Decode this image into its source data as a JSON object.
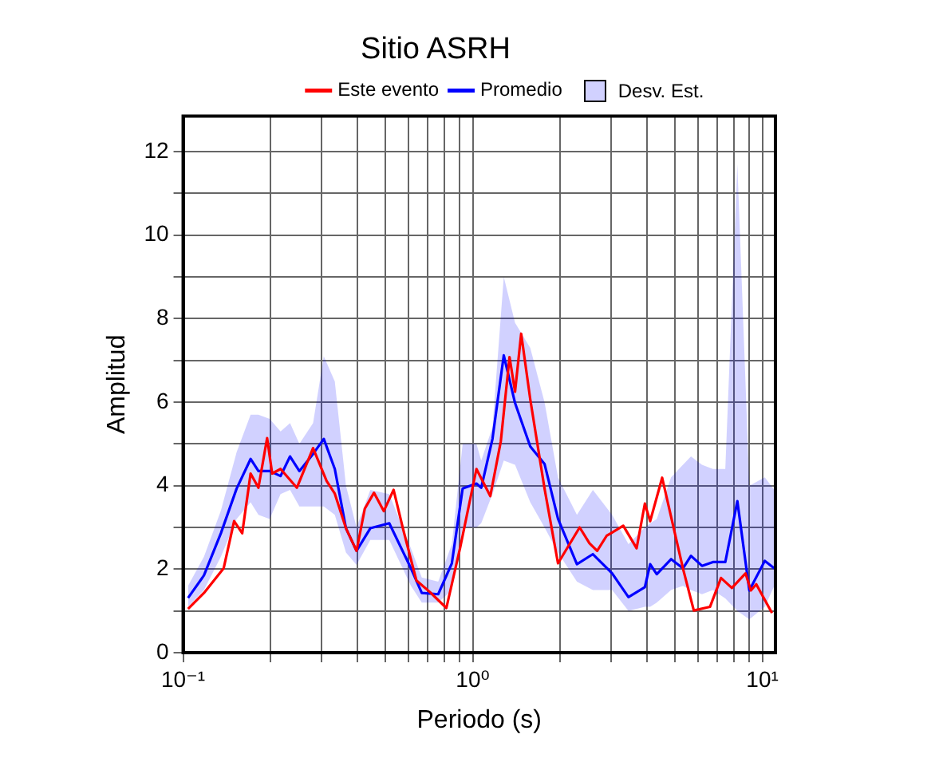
{
  "chart_data": {
    "type": "line",
    "title": "Sitio ASRH",
    "xlabel": "Periodo (s)",
    "ylabel": "Amplitud",
    "log": "x",
    "grid": true,
    "legend": "top",
    "xlim": [
      0.1,
      11.1
    ],
    "xticks": [
      {
        "value": 0.1,
        "label": "10⁻¹"
      },
      {
        "value": 0.2,
        "label": null
      },
      {
        "value": 0.3,
        "label": null
      },
      {
        "value": 0.4,
        "label": null
      },
      {
        "value": 0.5,
        "label": null
      },
      {
        "value": 0.6,
        "label": null
      },
      {
        "value": 0.7,
        "label": null
      },
      {
        "value": 0.8,
        "label": null
      },
      {
        "value": 0.9,
        "label": null
      },
      {
        "value": 1,
        "label": "10⁰"
      },
      {
        "value": 2,
        "label": null
      },
      {
        "value": 3,
        "label": null
      },
      {
        "value": 4,
        "label": null
      },
      {
        "value": 5,
        "label": null
      },
      {
        "value": 6,
        "label": null
      },
      {
        "value": 7,
        "label": null
      },
      {
        "value": 8,
        "label": null
      },
      {
        "value": 9,
        "label": null
      },
      {
        "value": 10,
        "label": "10¹"
      }
    ],
    "ylim": [
      0,
      12.85
    ],
    "yticks": [
      0,
      {
        "value": 1,
        "label": null
      },
      2,
      {
        "value": 3,
        "label": null
      },
      4,
      {
        "value": 5,
        "label": null
      },
      6,
      {
        "value": 7,
        "label": null
      },
      8,
      {
        "value": 9,
        "label": null
      },
      10,
      {
        "value": 11,
        "label": null
      },
      12
    ],
    "series": [
      {
        "name": "Este evento",
        "color": "#ff0000",
        "x": [
          0.104,
          0.118,
          0.138,
          0.15,
          0.16,
          0.171,
          0.182,
          0.195,
          0.203,
          0.217,
          0.247,
          0.281,
          0.313,
          0.334,
          0.365,
          0.397,
          0.424,
          0.456,
          0.493,
          0.533,
          0.574,
          0.639,
          0.712,
          0.811,
          0.904,
          1.03,
          1.15,
          1.25,
          1.34,
          1.4,
          1.47,
          1.58,
          1.77,
          1.97,
          2.34,
          2.53,
          2.69,
          2.9,
          3.31,
          3.68,
          3.93,
          4.1,
          4.51,
          4.88,
          5.32,
          5.8,
          6.6,
          7.2,
          7.85,
          8.75,
          9.13,
          9.53,
          10.8
        ],
        "values": [
          1.05,
          1.43,
          2.02,
          3.15,
          2.86,
          4.29,
          3.95,
          5.14,
          4.29,
          4.4,
          3.95,
          4.9,
          4.11,
          3.81,
          2.98,
          2.44,
          3.45,
          3.83,
          3.39,
          3.9,
          2.98,
          1.73,
          1.45,
          1.07,
          2.5,
          4.4,
          3.75,
          5.06,
          7.08,
          6.25,
          7.64,
          6.07,
          3.93,
          2.14,
          3.0,
          2.62,
          2.44,
          2.8,
          3.04,
          2.5,
          3.57,
          3.15,
          4.19,
          3.15,
          2.02,
          1.01,
          1.1,
          1.79,
          1.55,
          1.9,
          1.49,
          1.64,
          0.95
        ]
      },
      {
        "name": "Promedio",
        "color": "#0000ff",
        "x": [
          0.104,
          0.118,
          0.135,
          0.153,
          0.171,
          0.182,
          0.199,
          0.217,
          0.234,
          0.252,
          0.281,
          0.306,
          0.334,
          0.365,
          0.397,
          0.443,
          0.515,
          0.612,
          0.667,
          0.76,
          0.847,
          0.923,
          1.03,
          1.07,
          1.17,
          1.28,
          1.4,
          1.58,
          1.77,
          1.97,
          2.29,
          2.6,
          3.03,
          3.45,
          3.93,
          4.1,
          4.32,
          4.84,
          5.32,
          5.67,
          6.19,
          6.75,
          7.45,
          8.2,
          9.02,
          10.2,
          11.0
        ],
        "values": [
          1.31,
          1.85,
          2.86,
          3.93,
          4.64,
          4.35,
          4.35,
          4.23,
          4.7,
          4.35,
          4.76,
          5.12,
          4.4,
          2.98,
          2.44,
          2.98,
          3.1,
          2.02,
          1.43,
          1.4,
          2.14,
          3.93,
          4.05,
          3.95,
          5.12,
          7.12,
          5.98,
          4.94,
          4.52,
          3.21,
          2.12,
          2.36,
          1.9,
          1.33,
          1.57,
          2.12,
          1.88,
          2.24,
          2.02,
          2.32,
          2.08,
          2.17,
          2.17,
          3.63,
          1.49,
          2.2,
          2.02
        ],
        "lower": [
          1.1,
          1.5,
          2.3,
          3.2,
          3.6,
          3.3,
          3.2,
          3.8,
          3.9,
          3.5,
          3.5,
          3.5,
          3.3,
          2.4,
          2.1,
          2.7,
          2.7,
          1.6,
          1.2,
          1.2,
          1.5,
          3.0,
          3.0,
          3.1,
          3.8,
          4.6,
          4.5,
          3.6,
          3.0,
          2.4,
          1.7,
          1.5,
          1.5,
          1.0,
          1.1,
          1.1,
          1.2,
          1.5,
          1.6,
          1.5,
          1.4,
          1.5,
          1.3,
          1.0,
          0.8,
          1.1,
          1.6
        ],
        "upper": [
          1.6,
          2.3,
          3.4,
          4.8,
          5.7,
          5.7,
          5.6,
          5.3,
          5.5,
          5.0,
          5.5,
          7.1,
          6.5,
          4.0,
          3.0,
          3.9,
          3.8,
          2.5,
          1.8,
          1.7,
          2.6,
          5.0,
          5.0,
          4.6,
          5.4,
          9.0,
          7.9,
          7.3,
          6.0,
          4.2,
          3.3,
          3.9,
          3.3,
          2.6,
          3.0,
          3.1,
          3.2,
          4.2,
          4.5,
          4.7,
          4.5,
          4.4,
          4.4,
          11.7,
          4.0,
          4.2,
          3.9
        ]
      }
    ],
    "annotations": [
      "Desv. Est."
    ]
  }
}
